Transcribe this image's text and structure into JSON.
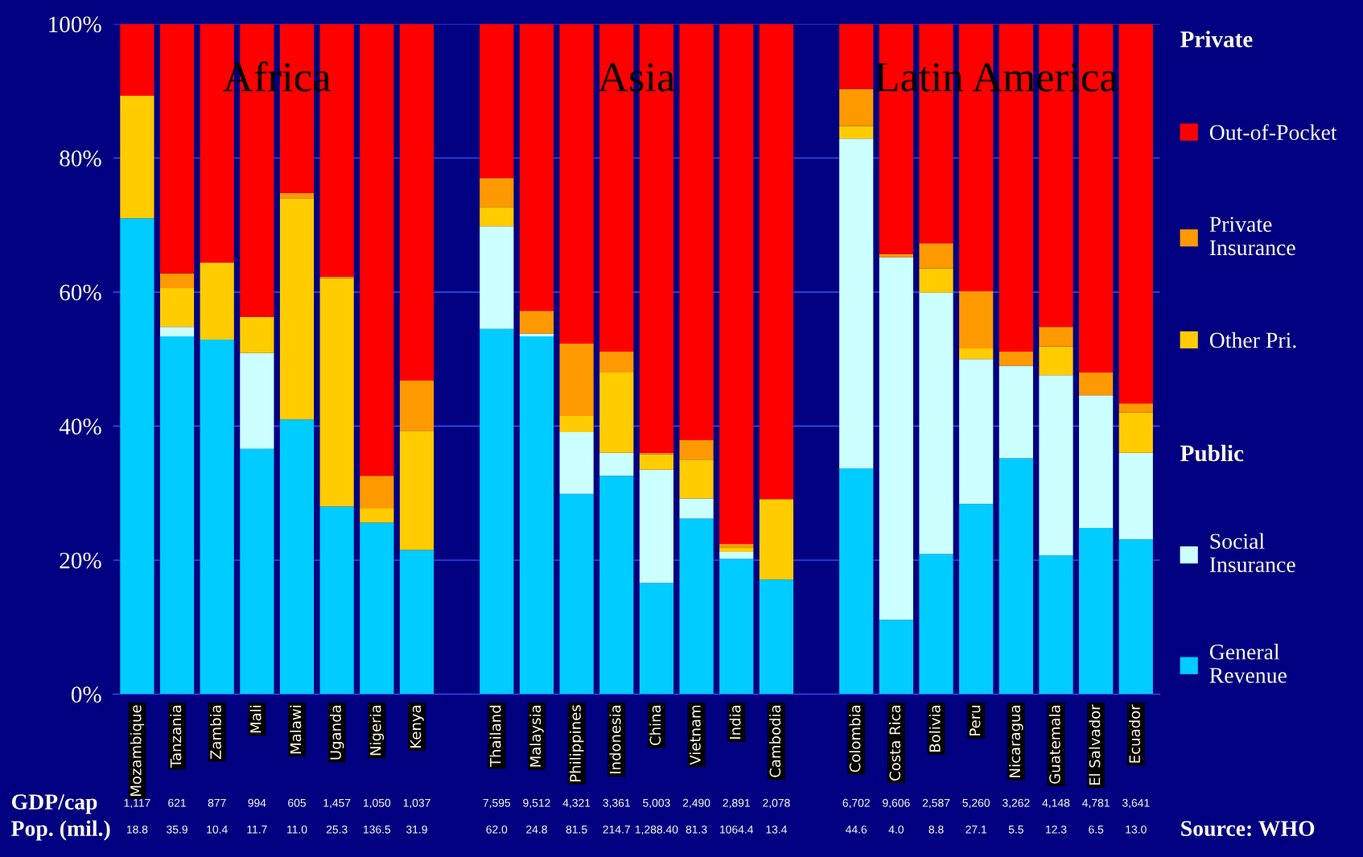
{
  "chart_data": {
    "type": "bar",
    "stacked": true,
    "categories": [
      "Mozambique",
      "Tanzania",
      "Zambia",
      "Mali",
      "Malawi",
      "Uganda",
      "Nigeria",
      "Kenya",
      null,
      "Thailand",
      "Malaysia",
      "Philippines",
      "Indonesia",
      "China",
      "Vietnam",
      "India",
      "Cambodia",
      null,
      "Colombia",
      "Costa Rica",
      "Bolivia",
      "Peru",
      "Nicaragua",
      "Guatemala",
      "El Salvador",
      "Ecuador"
    ],
    "series": [
      {
        "name": "General Revenue",
        "color": "#00ccff",
        "values": [
          71.0,
          53.4,
          52.9,
          36.6,
          41.0,
          28.0,
          25.6,
          21.5,
          null,
          54.5,
          53.4,
          29.9,
          32.6,
          16.6,
          26.2,
          20.2,
          17.1,
          null,
          33.7,
          11.1,
          20.9,
          28.4,
          35.2,
          20.7,
          24.8,
          23.1
        ]
      },
      {
        "name": "Social Insurance",
        "color": "#ccffff",
        "values": [
          0,
          1.4,
          0,
          14.3,
          0,
          0,
          0,
          0,
          null,
          15.3,
          0.4,
          9.2,
          3.4,
          16.9,
          3.0,
          1.0,
          0,
          null,
          49.2,
          54.1,
          39.0,
          21.6,
          13.8,
          26.9,
          19.8,
          12.9
        ]
      },
      {
        "name": "Other Pri.",
        "color": "#ffcc00",
        "values": [
          18.3,
          5.8,
          11.5,
          5.4,
          33.0,
          34.1,
          2.1,
          17.8,
          null,
          2.9,
          0,
          2.4,
          12.0,
          2.3,
          5.8,
          0.7,
          12.0,
          null,
          1.9,
          0,
          3.6,
          1.6,
          0,
          4.3,
          0,
          6.0
        ]
      },
      {
        "name": "Private Insurance",
        "color": "#ff9900",
        "values": [
          0,
          2.2,
          0,
          0,
          0.8,
          0.2,
          4.9,
          7.5,
          null,
          4.3,
          3.4,
          10.8,
          3.1,
          0.2,
          2.9,
          0.5,
          0,
          null,
          5.5,
          0.5,
          3.8,
          8.5,
          2.1,
          2.9,
          3.4,
          1.4
        ]
      },
      {
        "name": "Out-of-Pocket",
        "color": "#ff0000",
        "values": [
          10.7,
          37.2,
          35.6,
          43.7,
          25.2,
          37.7,
          67.4,
          53.2,
          null,
          23.0,
          42.8,
          47.7,
          48.9,
          64.0,
          62.1,
          77.6,
          70.9,
          null,
          9.7,
          34.3,
          32.7,
          39.9,
          48.9,
          45.2,
          52.0,
          56.6
        ]
      }
    ],
    "ylim": [
      0,
      100
    ],
    "yticks": [
      {
        "value": 0,
        "label": "0%"
      },
      {
        "value": 20,
        "label": "20%"
      },
      {
        "value": 40,
        "label": "40%"
      },
      {
        "value": 60,
        "label": "60%"
      },
      {
        "value": 80,
        "label": "80%"
      },
      {
        "value": 100,
        "label": "100%"
      }
    ],
    "grid": "y",
    "legend": "right",
    "annotations": [
      "Private",
      "Public",
      "GDP/cap",
      "1,117",
      "621",
      "877",
      "994",
      "605",
      "1,457",
      "1,050",
      "1,037",
      "7,595",
      "9,512",
      "4,321",
      "3,361",
      "5,003",
      "2,490",
      "2,891",
      "2,078",
      "6,702",
      "9,606",
      "2,587",
      "5,260",
      "3,262",
      "4,148",
      "4,781",
      "3,641",
      "Pop. (mil.)",
      "18.8",
      "35.9",
      "10.4",
      "11.7",
      "11.0",
      "25.3",
      "136.5",
      "31.9",
      "62.0",
      "24.8",
      "81.5",
      "214.7",
      "1,288.40",
      "81.3",
      "1064.4",
      "13.4",
      "44.6",
      "4.0",
      "8.8",
      "27.1",
      "5.5",
      "12.3",
      "6.5",
      "13.0",
      "Africa",
      "Asia",
      "Latin America",
      "Source: WHO"
    ]
  }
}
